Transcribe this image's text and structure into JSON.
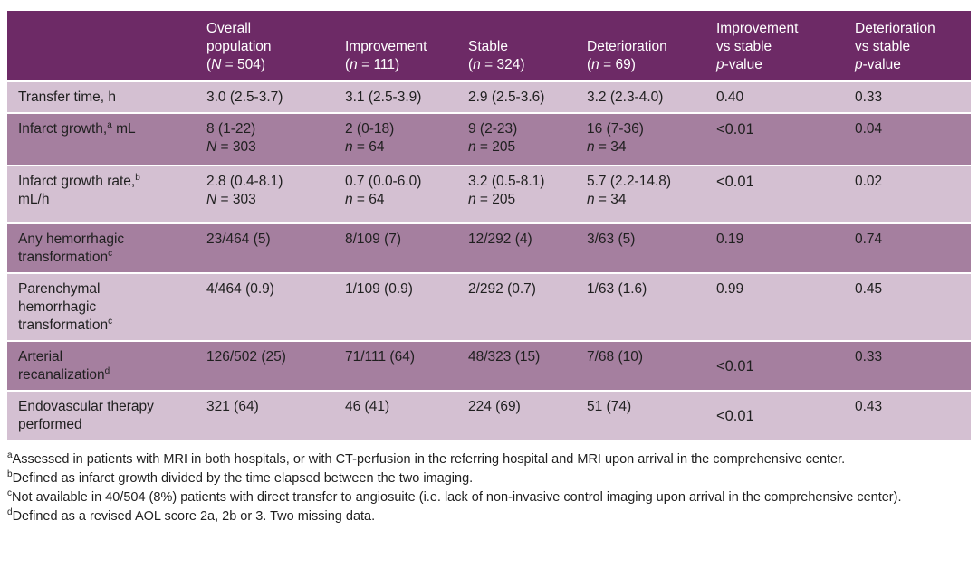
{
  "table": {
    "header": {
      "col0": "",
      "col1": [
        "Overall",
        "population",
        "(N = 504)"
      ],
      "col2": [
        "Improvement",
        "(n = 111)"
      ],
      "col3": [
        "Stable",
        "(n = 324)"
      ],
      "col4": [
        "Deterioration",
        "(n = 69)"
      ],
      "col5": [
        "Improvement",
        "vs stable",
        "p-value"
      ],
      "col6": [
        "Deterioration",
        "vs stable",
        "p-value"
      ]
    },
    "rows": [
      {
        "label": [
          "Transfer time, h"
        ],
        "overall": [
          "3.0 (2.5-3.7)"
        ],
        "improvement": [
          "3.1 (2.5-3.9)"
        ],
        "stable": [
          "2.9 (2.5-3.6)"
        ],
        "deterioration": [
          "3.2 (2.3-4.0)"
        ],
        "p_imp": "0.40",
        "p_det": "0.33"
      },
      {
        "label": [
          "Infarct growth,",
          "a",
          " mL"
        ],
        "overall": [
          "8 (1-22)",
          "N = 303"
        ],
        "improvement": [
          "2 (0-18)",
          "n = 64"
        ],
        "stable": [
          "9 (2-23)",
          "n = 205"
        ],
        "deterioration": [
          "16 (7-36)",
          "n = 34"
        ],
        "p_imp": "<0.01",
        "p_det": "0.04"
      },
      {
        "label": [
          "Infarct growth rate,",
          "b",
          "mL/h"
        ],
        "overall": [
          "2.8 (0.4-8.1)",
          "N = 303"
        ],
        "improvement": [
          "0.7 (0.0-6.0)",
          "n = 64"
        ],
        "stable": [
          "3.2 (0.5-8.1)",
          "n = 205"
        ],
        "deterioration": [
          "5.7 (2.2-14.8)",
          "n = 34"
        ],
        "p_imp": "<0.01",
        "p_det": "0.02"
      },
      {
        "label": [
          "Any hemorrhagic",
          "transformation",
          "c"
        ],
        "overall": [
          "23/464 (5)"
        ],
        "improvement": [
          "8/109 (7)"
        ],
        "stable": [
          "12/292 (4)"
        ],
        "deterioration": [
          "3/63 (5)"
        ],
        "p_imp": "0.19",
        "p_det": "0.74"
      },
      {
        "label": [
          "Parenchymal",
          "hemorrhagic",
          "transformation",
          "c"
        ],
        "overall": [
          "4/464 (0.9)"
        ],
        "improvement": [
          "1/109 (0.9)"
        ],
        "stable": [
          "2/292 (0.7)"
        ],
        "deterioration": [
          "1/63 (1.6)"
        ],
        "p_imp": "0.99",
        "p_det": "0.45"
      },
      {
        "label": [
          "Arterial",
          "recanalization",
          "d"
        ],
        "overall": [
          "126/502 (25)"
        ],
        "improvement": [
          "71/111 (64)"
        ],
        "stable": [
          "48/323 (15)"
        ],
        "deterioration": [
          "7/68 (10)"
        ],
        "p_imp": "<0.01",
        "p_det": "0.33"
      },
      {
        "label": [
          "Endovascular therapy",
          "performed"
        ],
        "overall": [
          "321 (64)"
        ],
        "improvement": [
          "46 (41)"
        ],
        "stable": [
          "224 (69)"
        ],
        "deterioration": [
          "51 (74)"
        ],
        "p_imp": "<0.01",
        "p_det": "0.43"
      }
    ]
  },
  "footnotes": [
    {
      "mark": "a",
      "text": "Assessed in patients with MRI in both hospitals, or with CT-perfusion in the referring hospital and MRI upon arrival in the comprehensive center."
    },
    {
      "mark": "b",
      "text": "Defined as infarct growth divided by the time elapsed between the two imaging."
    },
    {
      "mark": "c",
      "text": "Not available in 40/504 (8%) patients with direct transfer to angiosuite (i.e. lack of non-invasive control imaging upon arrival in the comprehensive center)."
    },
    {
      "mark": "d",
      "text": "Defined as a revised AOL score 2a, 2b or 3. Two missing data."
    }
  ],
  "colors": {
    "header_bg": "#6d2a66",
    "row_light": "#d4c0d2",
    "row_dark": "#a57f9f"
  }
}
